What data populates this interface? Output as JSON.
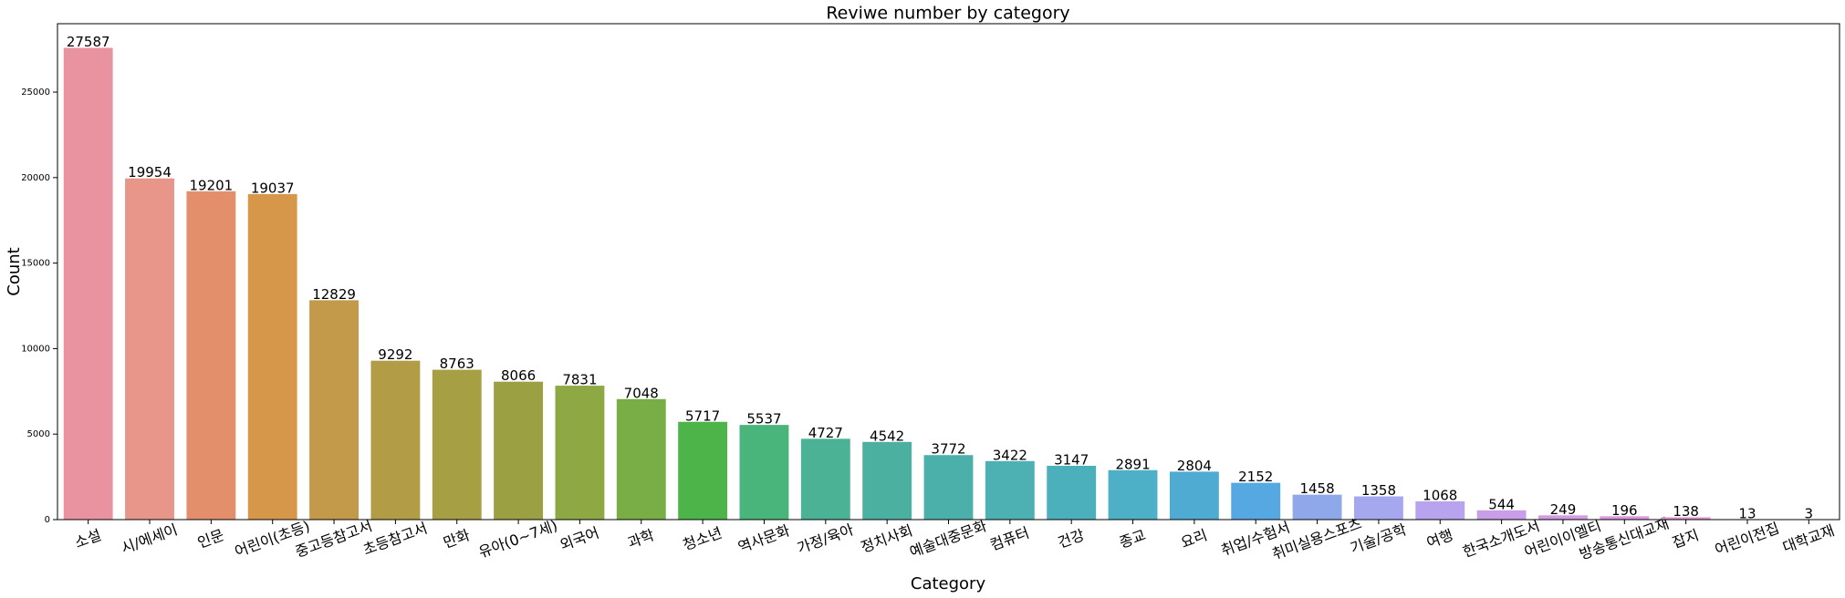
{
  "chart_data": {
    "type": "bar",
    "title": "Reviwe number by category",
    "x_label": "Category",
    "y_label": "Count",
    "categories": [
      "소설",
      "시/에세이",
      "인문",
      "어린이(초등)",
      "중고등참고서",
      "초등참고서",
      "만화",
      "유아(0~7세)",
      "외국어",
      "과학",
      "청소년",
      "역사문화",
      "가정/육아",
      "정치사회",
      "예술대중문화",
      "컴퓨터",
      "건강",
      "종교",
      "요리",
      "취업/수험서",
      "취미실용스포츠",
      "기술/공학",
      "여행",
      "한국소개도서",
      "어린이이엘티",
      "방송통신대교재",
      "잡지",
      "어린이전집",
      "대학교재"
    ],
    "values": [
      27587,
      19954,
      19201,
      19037,
      12829,
      9292,
      8763,
      8066,
      7831,
      7048,
      5717,
      5537,
      4727,
      4542,
      3772,
      3422,
      3147,
      2891,
      2804,
      2152,
      1458,
      1358,
      1068,
      544,
      249,
      196,
      138,
      13,
      3
    ],
    "colors": [
      "#ea93a0",
      "#e9968a",
      "#e48f6b",
      "#d7974a",
      "#c39a4a",
      "#b29c45",
      "#a79f44",
      "#9ba043",
      "#8ea844",
      "#79ad46",
      "#4cb449",
      "#4ab57a",
      "#4bb295",
      "#4bb0a0",
      "#4bafaa",
      "#4db0b3",
      "#4cb0bc",
      "#4db0c7",
      "#4fabd2",
      "#56a8e3",
      "#8ea8ea",
      "#a5a8ef",
      "#b7a3ee",
      "#c89ee8",
      "#d59ae4",
      "#dd97de",
      "#e497d2",
      "#e895c5",
      "#ea93b7"
    ],
    "ylim": [
      0,
      29000
    ],
    "yticks": [
      0,
      5000,
      10000,
      15000,
      20000,
      25000
    ]
  }
}
